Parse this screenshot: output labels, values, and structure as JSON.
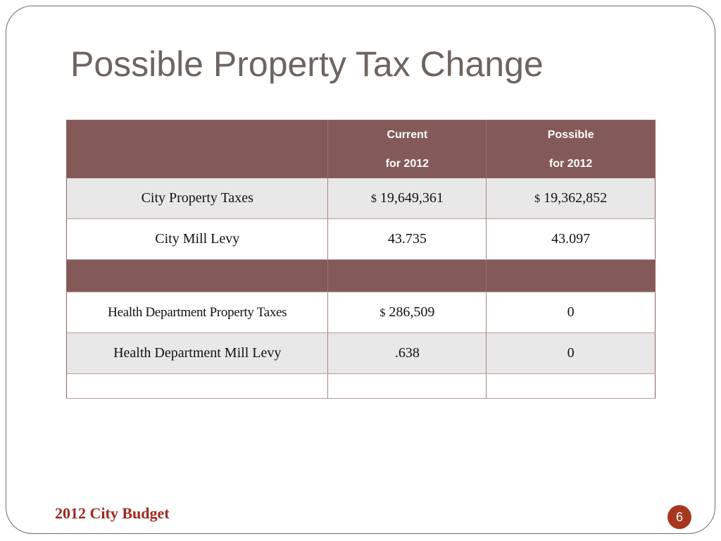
{
  "slide": {
    "title": "Possible Property Tax Change",
    "footer": "2012 City Budget",
    "page_number": "6"
  },
  "table": {
    "headers": [
      {
        "line1": "",
        "line2": ""
      },
      {
        "line1": "Current",
        "line2": "for 2012"
      },
      {
        "line1": "Possible",
        "line2": "for 2012"
      }
    ],
    "rows": [
      {
        "label": "City Property Taxes",
        "current_symbol": "$",
        "current": "19,649,361",
        "possible_symbol": "$",
        "possible": "19,362,852"
      },
      {
        "label": "City Mill Levy",
        "current_symbol": "",
        "current": "43.735",
        "possible_symbol": "",
        "possible": "43.097"
      },
      {
        "label": "",
        "current_symbol": "",
        "current": "",
        "possible_symbol": "",
        "possible": ""
      },
      {
        "label": "Health Department Property Taxes",
        "current_symbol": "$",
        "current": "286,509",
        "possible_symbol": "",
        "possible": "0"
      },
      {
        "label": "Health Department Mill Levy",
        "current_symbol": "",
        "current": ".638",
        "possible_symbol": "",
        "possible": "0"
      },
      {
        "label": "",
        "current_symbol": "",
        "current": "",
        "possible_symbol": "",
        "possible": ""
      }
    ]
  },
  "colors": {
    "header_brown": "#845a59",
    "footer_red": "#a0281e",
    "badge_red": "#a8371f",
    "title_gray": "#6e6460"
  }
}
